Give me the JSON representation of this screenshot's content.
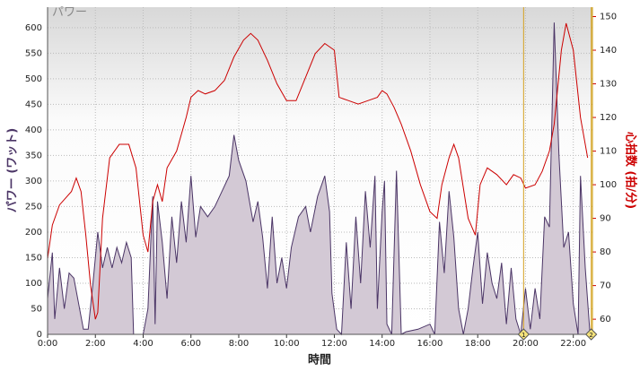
{
  "chart_data": {
    "type": "area-line",
    "xlabel": "時間",
    "ylabel": "パワー (ワット)",
    "y2label": "心拍数 (拍/分)",
    "xlim": [
      0,
      22.8
    ],
    "ylim": [
      0,
      640
    ],
    "y2lim": [
      55.5,
      152.8
    ],
    "xticks": [
      {
        "value": 0,
        "label": "0:00"
      },
      {
        "value": 2,
        "label": "2:00"
      },
      {
        "value": 4,
        "label": "4:00"
      },
      {
        "value": 6,
        "label": "6:00"
      },
      {
        "value": 8,
        "label": "8:00"
      },
      {
        "value": 10,
        "label": "10:00"
      },
      {
        "value": 12,
        "label": "12:00"
      },
      {
        "value": 14,
        "label": "14:00"
      },
      {
        "value": 16,
        "label": "16:00"
      },
      {
        "value": 18,
        "label": "18:00"
      },
      {
        "value": 20,
        "label": "20:00"
      },
      {
        "value": 22,
        "label": "22:00"
      }
    ],
    "yticks": [
      0,
      50,
      100,
      150,
      200,
      250,
      300,
      350,
      400,
      450,
      500,
      550,
      600
    ],
    "y2ticks": [
      60,
      70,
      80,
      90,
      100,
      110,
      120,
      130,
      140,
      150
    ],
    "grid": true,
    "markers": [
      {
        "x": 19.92,
        "label": "1"
      },
      {
        "x": 22.75,
        "label": "2"
      }
    ],
    "series": [
      {
        "name": "パワー",
        "color": "#4b3566",
        "fill": "#d3c9d5",
        "axis": "y",
        "x": [
          0.0,
          0.2,
          0.3,
          0.5,
          0.7,
          0.9,
          1.1,
          1.3,
          1.5,
          1.7,
          1.9,
          2.1,
          2.3,
          2.5,
          2.7,
          2.9,
          3.1,
          3.3,
          3.5,
          3.6,
          4.0,
          4.2,
          4.4,
          4.5,
          4.6,
          4.8,
          5.0,
          5.2,
          5.4,
          5.6,
          5.8,
          6.0,
          6.2,
          6.4,
          6.7,
          7.0,
          7.3,
          7.6,
          7.8,
          8.0,
          8.3,
          8.6,
          8.8,
          9.0,
          9.2,
          9.4,
          9.6,
          9.8,
          10.0,
          10.2,
          10.5,
          10.8,
          11.0,
          11.3,
          11.6,
          11.8,
          11.9,
          12.1,
          12.3,
          12.5,
          12.7,
          12.9,
          13.1,
          13.3,
          13.5,
          13.7,
          13.8,
          14.0,
          14.1,
          14.2,
          14.4,
          14.6,
          14.8,
          15.0,
          15.5,
          16.0,
          16.2,
          16.4,
          16.6,
          16.8,
          17.0,
          17.2,
          17.4,
          17.6,
          17.8,
          18.0,
          18.2,
          18.4,
          18.6,
          18.8,
          19.0,
          19.2,
          19.4,
          19.6,
          19.8,
          20.0,
          20.2,
          20.4,
          20.6,
          20.8,
          21.0,
          21.2,
          21.4,
          21.6,
          21.8,
          22.0,
          22.2,
          22.3,
          22.5,
          22.7
        ],
        "values": [
          70,
          160,
          30,
          130,
          50,
          120,
          110,
          60,
          10,
          10,
          100,
          200,
          130,
          170,
          130,
          170,
          140,
          180,
          150,
          0,
          0,
          50,
          270,
          20,
          260,
          180,
          70,
          230,
          140,
          260,
          180,
          310,
          190,
          250,
          230,
          250,
          280,
          310,
          390,
          340,
          300,
          220,
          260,
          190,
          90,
          230,
          100,
          150,
          90,
          170,
          230,
          250,
          200,
          270,
          310,
          240,
          80,
          10,
          0,
          180,
          50,
          230,
          100,
          280,
          170,
          310,
          50,
          240,
          300,
          20,
          0,
          320,
          0,
          5,
          10,
          20,
          0,
          220,
          120,
          280,
          190,
          50,
          0,
          50,
          130,
          200,
          60,
          160,
          100,
          70,
          140,
          20,
          130,
          30,
          0,
          90,
          10,
          90,
          30,
          230,
          210,
          610,
          350,
          170,
          200,
          60,
          0,
          310,
          130,
          0
        ]
      },
      {
        "color": "#cc0000",
        "axis": "y2",
        "x": [
          0.0,
          0.2,
          0.5,
          1.0,
          1.2,
          1.4,
          1.6,
          1.8,
          2.0,
          2.1,
          2.3,
          2.6,
          3.0,
          3.4,
          3.7,
          4.0,
          4.2,
          4.4,
          4.6,
          4.8,
          5.0,
          5.4,
          5.8,
          6.0,
          6.3,
          6.6,
          7.0,
          7.4,
          7.8,
          8.2,
          8.5,
          8.8,
          9.2,
          9.6,
          10.0,
          10.4,
          10.8,
          11.2,
          11.6,
          12.0,
          12.2,
          12.6,
          13.0,
          13.4,
          13.8,
          14.0,
          14.2,
          14.5,
          14.8,
          15.2,
          15.6,
          16.0,
          16.3,
          16.5,
          16.8,
          17.0,
          17.2,
          17.6,
          17.9,
          18.1,
          18.4,
          18.8,
          19.2,
          19.5,
          19.8,
          20.0,
          20.4,
          20.7,
          21.0,
          21.2,
          21.5,
          21.7,
          22.0,
          22.3,
          22.6
        ],
        "values": [
          78,
          88,
          94,
          98,
          102,
          98,
          85,
          70,
          60,
          62,
          90,
          108,
          112,
          112,
          105,
          85,
          80,
          95,
          100,
          95,
          105,
          110,
          120,
          126,
          128,
          127,
          128,
          131,
          138,
          143,
          145,
          143,
          137,
          130,
          125,
          125,
          132,
          139,
          142,
          140,
          126,
          125,
          124,
          125,
          126,
          128,
          127,
          123,
          118,
          110,
          100,
          92,
          90,
          100,
          108,
          112,
          108,
          90,
          85,
          100,
          105,
          103,
          100,
          103,
          102,
          99,
          100,
          104,
          110,
          118,
          140,
          148,
          140,
          120,
          108
        ]
      }
    ]
  }
}
